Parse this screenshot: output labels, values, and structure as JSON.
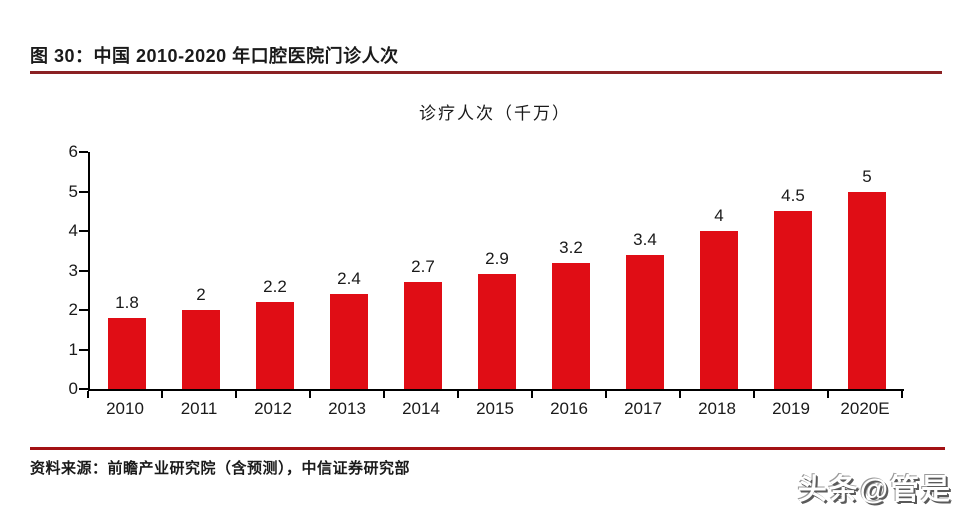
{
  "page": {
    "figure_title": "图 30：中国 2010-2020 年口腔医院门诊人次",
    "source_text": "资料来源：前瞻产业研究院（含预测），中信证券研究部",
    "watermark": "头条@管是"
  },
  "colors": {
    "bar": "#e00d15",
    "title_rule": "#8b2123",
    "source_rule": "#a31114",
    "axis": "#000000",
    "text": "#1a1a1a"
  },
  "chart_data": {
    "type": "bar",
    "title": "诊疗人次（千万）",
    "categories": [
      "2010",
      "2011",
      "2012",
      "2013",
      "2014",
      "2015",
      "2016",
      "2017",
      "2018",
      "2019",
      "2020E"
    ],
    "values": [
      1.8,
      2,
      2.2,
      2.4,
      2.7,
      2.9,
      3.2,
      3.4,
      4,
      4.5,
      5
    ],
    "value_labels": [
      "1.8",
      "2",
      "2.2",
      "2.4",
      "2.7",
      "2.9",
      "3.2",
      "3.4",
      "4",
      "4.5",
      "5"
    ],
    "xlabel": "",
    "ylabel": "",
    "ylim": [
      0,
      6
    ],
    "yticks": [
      0,
      1,
      2,
      3,
      4,
      5,
      6
    ],
    "grid": false,
    "legend": "none",
    "bar_color": "#e00d15"
  }
}
